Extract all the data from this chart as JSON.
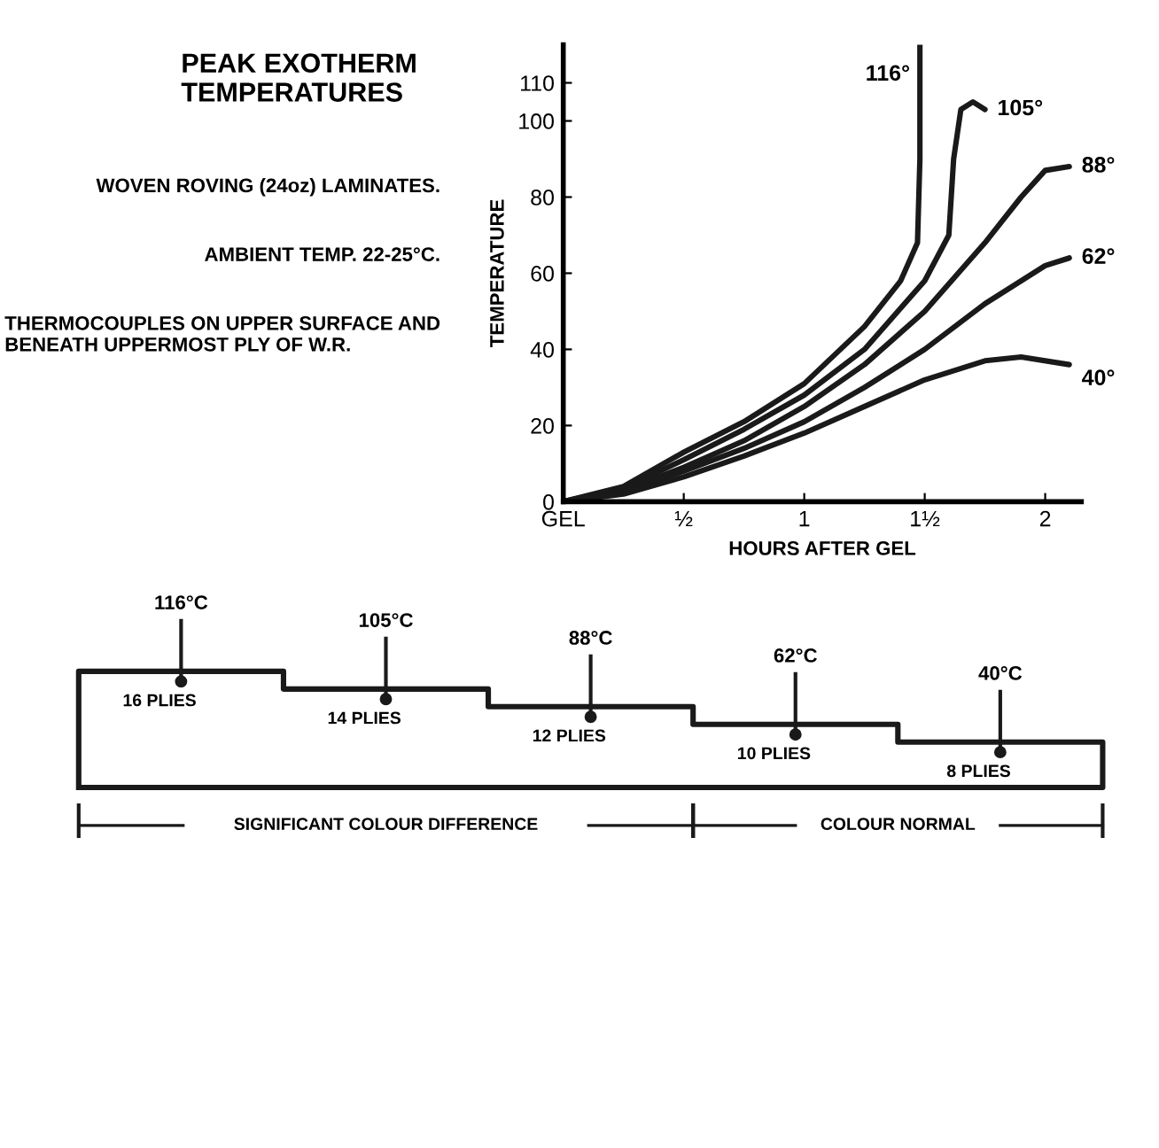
{
  "chart_data": [
    {
      "type": "line",
      "title": "PEAK EXOTHERM TEMPERATURES",
      "xlabel": "HOURS AFTER GEL",
      "ylabel": "TEMPERATURE",
      "annotations": [
        "WOVEN ROVING (24oz) LAMINATES.",
        "AMBIENT TEMP. 22-25°C.",
        "THERMOCOUPLES ON UPPER SURFACE AND BENEATH UPPERMOST PLY OF W.R."
      ],
      "xlim": [
        0,
        2.15
      ],
      "xticks": [
        {
          "value": 0,
          "label": "GEL"
        },
        {
          "value": 0.5,
          "label": "½"
        },
        1,
        {
          "value": 1.5,
          "label": "1½"
        },
        2
      ],
      "ylim": [
        0,
        120
      ],
      "yticks": [
        0,
        20,
        40,
        60,
        80,
        100,
        110
      ],
      "grid": false,
      "legend": false,
      "marker": "none",
      "line_style": "solid",
      "series": [
        {
          "name": "116°",
          "color": "#1a1a1a",
          "x": [
            0,
            0.25,
            0.5,
            0.75,
            1,
            1.25,
            1.4,
            1.47,
            1.48,
            1.48
          ],
          "values": [
            0,
            4,
            13,
            21,
            31,
            46,
            58,
            68,
            90,
            120
          ]
        },
        {
          "name": "105°",
          "color": "#1a1a1a",
          "x": [
            0,
            0.25,
            0.5,
            0.75,
            1,
            1.25,
            1.5,
            1.6,
            1.62,
            1.65,
            1.7,
            1.75
          ],
          "values": [
            0,
            3.5,
            11,
            19,
            28,
            40,
            58,
            70,
            90,
            103,
            105,
            103
          ]
        },
        {
          "name": "88°",
          "color": "#1a1a1a",
          "x": [
            0,
            0.25,
            0.5,
            0.75,
            1,
            1.25,
            1.5,
            1.75,
            1.9,
            2,
            2.1
          ],
          "values": [
            0,
            3,
            9,
            16,
            25,
            36,
            50,
            68,
            80,
            87,
            88
          ]
        },
        {
          "name": "62°",
          "color": "#1a1a1a",
          "x": [
            0,
            0.25,
            0.5,
            0.75,
            1,
            1.25,
            1.5,
            1.75,
            2,
            2.1
          ],
          "values": [
            0,
            2.5,
            8,
            14,
            21,
            30,
            40,
            52,
            62,
            64
          ]
        },
        {
          "name": "40°",
          "color": "#1a1a1a",
          "x": [
            0,
            0.25,
            0.5,
            0.75,
            1,
            1.25,
            1.5,
            1.75,
            1.9,
            2.1
          ],
          "values": [
            0,
            2,
            6.5,
            12,
            18,
            25,
            32,
            37,
            38,
            36
          ]
        }
      ]
    },
    {
      "type": "other",
      "categories": [
        "16 PLIES",
        "14 PLIES",
        "12 PLIES",
        "10 PLIES",
        "8 PLIES"
      ],
      "value_labels": [
        "116°C",
        "105°C",
        "88°C",
        "62°C",
        "40°C"
      ],
      "annotations": [
        "SIGNIFICANT COLOUR DIFFERENCE",
        "COLOUR NORMAL"
      ]
    }
  ]
}
